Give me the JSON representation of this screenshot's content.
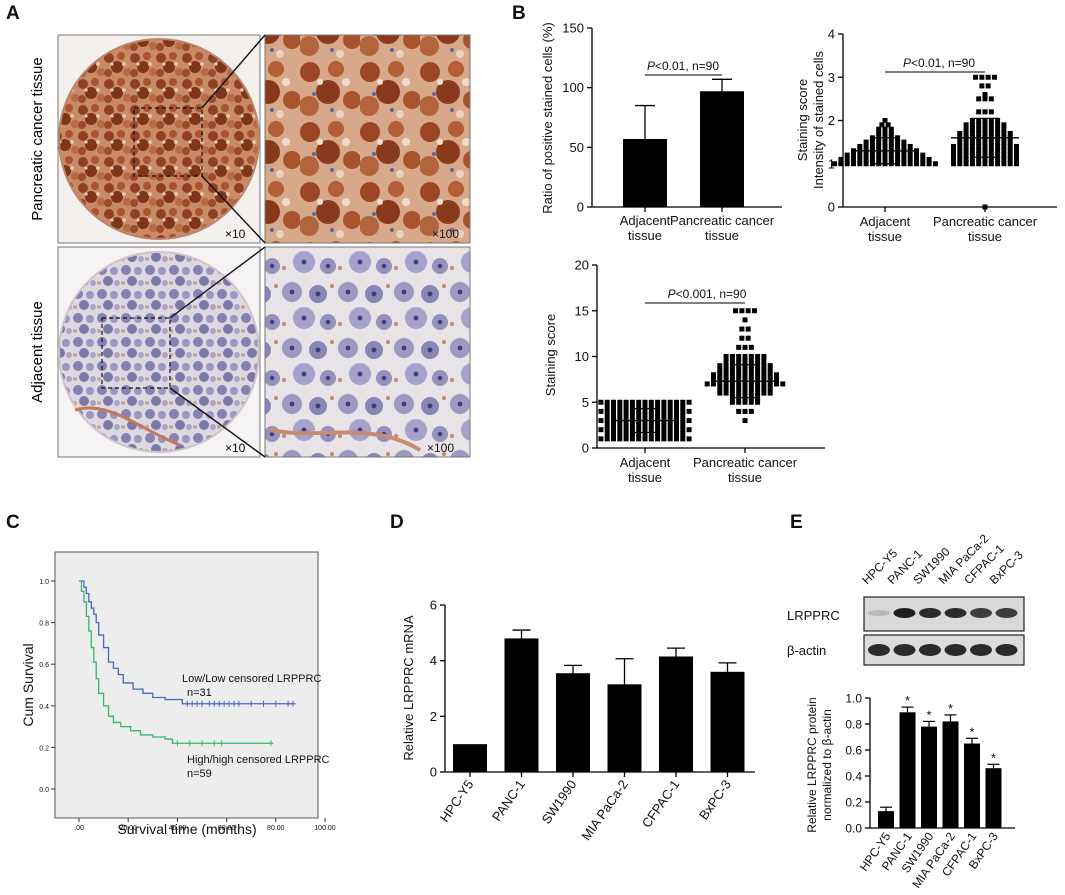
{
  "panels": {
    "a": {
      "letter": "A",
      "row_labels": [
        "Pancreatic cancer tissue",
        "Adjacent tissue"
      ],
      "mag_low": "×10",
      "mag_high": "×100"
    },
    "b": {
      "letter": "B"
    },
    "c": {
      "letter": "C"
    },
    "d": {
      "letter": "D"
    },
    "e": {
      "letter": "E"
    }
  },
  "colors": {
    "tumor_stain": "#9a4a2c",
    "normal_stain": "#7c7aa8",
    "km_low": "#4a66c0",
    "km_high": "#2fb86f",
    "km_bg": "#ededed",
    "bar": "#000000"
  },
  "chart_data": [
    {
      "id": "b1",
      "type": "bar",
      "categories": [
        [
          "Adjacent",
          "tissue"
        ],
        [
          "Pancreatic cancer",
          "tissue"
        ]
      ],
      "values": [
        57,
        97
      ],
      "errors": [
        28,
        10
      ],
      "ylabel": "Ratio of positive stained cells (%)",
      "ylim": [
        0,
        150
      ],
      "yticks": [
        0,
        50,
        100,
        150
      ],
      "annotation": {
        "p": "P",
        "text": "<0.01, n=90"
      }
    },
    {
      "id": "b2",
      "type": "scatter",
      "categories": [
        [
          "Adjacent",
          "tissue"
        ],
        [
          "Pancreatic cancer",
          "tissue"
        ]
      ],
      "ylabel": [
        "Staining score",
        "Intensity of stained cells"
      ],
      "ylim": [
        0,
        4
      ],
      "yticks": [
        0,
        1,
        2,
        3,
        4
      ],
      "means": [
        1.3,
        1.6
      ],
      "sd": [
        0.3,
        0.45
      ],
      "groups": [
        {
          "levels": [
            [
              1.0,
              17
            ],
            [
              1.1,
              15
            ],
            [
              1.2,
              13
            ],
            [
              1.3,
              11
            ],
            [
              1.4,
              9
            ],
            [
              1.5,
              7
            ],
            [
              1.6,
              5
            ],
            [
              1.7,
              3
            ],
            [
              1.8,
              3
            ],
            [
              1.9,
              2
            ],
            [
              2.0,
              1
            ]
          ]
        },
        {
          "levels": [
            [
              1.0,
              11
            ],
            [
              1.1,
              11
            ],
            [
              1.2,
              11
            ],
            [
              1.3,
              11
            ],
            [
              1.4,
              11
            ],
            [
              1.5,
              9
            ],
            [
              1.6,
              9
            ],
            [
              1.7,
              9
            ],
            [
              1.8,
              7
            ],
            [
              1.9,
              7
            ],
            [
              2.0,
              5
            ],
            [
              2.2,
              3
            ],
            [
              2.5,
              3
            ],
            [
              2.6,
              1
            ],
            [
              2.8,
              2
            ],
            [
              3.0,
              4
            ],
            [
              0.0,
              1
            ]
          ]
        }
      ],
      "annotation": {
        "p": "P",
        "text": "<0.01, n=90"
      }
    },
    {
      "id": "b3",
      "type": "scatter",
      "categories": [
        [
          "Adjacent",
          "tissue"
        ],
        [
          "Pancreatic cancer",
          "tissue"
        ]
      ],
      "ylabel": "Staining score",
      "ylim": [
        0,
        20
      ],
      "yticks": [
        0,
        5,
        10,
        15,
        20
      ],
      "means": [
        3.0,
        7.3
      ],
      "sd": [
        1.3,
        1.8
      ],
      "groups": [
        {
          "levels": [
            [
              1,
              15
            ],
            [
              1.5,
              13
            ],
            [
              2,
              15
            ],
            [
              2.5,
              13
            ],
            [
              3,
              15
            ],
            [
              3.5,
              13
            ],
            [
              4,
              15
            ],
            [
              4.5,
              13
            ],
            [
              5,
              15
            ]
          ]
        },
        {
          "levels": [
            [
              3,
              1
            ],
            [
              4,
              3
            ],
            [
              5,
              5
            ],
            [
              5.5,
              5
            ],
            [
              6,
              9
            ],
            [
              6.5,
              9
            ],
            [
              7,
              13
            ],
            [
              7.5,
              11
            ],
            [
              8,
              11
            ],
            [
              8.5,
              9
            ],
            [
              9,
              9
            ],
            [
              9.5,
              7
            ],
            [
              10,
              7
            ],
            [
              11,
              3
            ],
            [
              12,
              2
            ],
            [
              13,
              2
            ],
            [
              14,
              1
            ],
            [
              15,
              4
            ]
          ]
        }
      ],
      "annotation": {
        "p": "P",
        "text": "<0.001, n=90"
      }
    },
    {
      "id": "c",
      "type": "line",
      "xlabel": "Survival time (months)",
      "ylabel": "Cum Survival",
      "xlim": [
        0,
        100
      ],
      "ylim": [
        0,
        1
      ],
      "xticks": [
        ".00",
        "20.00",
        "40.00",
        "60.00",
        "80.00",
        "100.00"
      ],
      "yticks": [
        "0.0",
        "0.2",
        "0.4",
        "0.6",
        "0.8",
        "1.0"
      ],
      "series": [
        {
          "name": "Low/Low censored LRPPRC",
          "n_label": "n=31",
          "x": [
            0,
            2,
            3,
            4,
            5,
            6,
            7,
            8,
            10,
            12,
            14,
            16,
            18,
            22,
            26,
            30,
            35,
            42,
            88
          ],
          "y": [
            1.0,
            0.97,
            0.94,
            0.9,
            0.87,
            0.84,
            0.8,
            0.74,
            0.68,
            0.61,
            0.58,
            0.55,
            0.51,
            0.48,
            0.46,
            0.44,
            0.43,
            0.41,
            0.41
          ],
          "censored": [
            44,
            46,
            48,
            50,
            53,
            55,
            57,
            59,
            61,
            63,
            65,
            70,
            75,
            80,
            85,
            87
          ]
        },
        {
          "name": "High/high censored LRPPRC",
          "n_label": "n=59",
          "x": [
            0,
            1,
            2,
            3,
            4,
            5,
            6,
            7,
            8,
            10,
            12,
            14,
            17,
            21,
            25,
            30,
            35,
            38,
            79
          ],
          "y": [
            1.0,
            0.95,
            0.9,
            0.83,
            0.76,
            0.68,
            0.61,
            0.53,
            0.46,
            0.4,
            0.35,
            0.32,
            0.3,
            0.28,
            0.26,
            0.25,
            0.24,
            0.22,
            0.22
          ],
          "censored": [
            40,
            45,
            50,
            55,
            58,
            78
          ]
        }
      ]
    },
    {
      "id": "d",
      "type": "bar",
      "categories": [
        "HPC-Y5",
        "PANC-1",
        "SW1990",
        "MIA PaCa-2",
        "CFPAC-1",
        "BxPC-3"
      ],
      "values": [
        1.0,
        4.8,
        3.55,
        3.15,
        4.15,
        3.6
      ],
      "errors": [
        0,
        0.3,
        0.28,
        0.92,
        0.3,
        0.32
      ],
      "ylabel": "Relative LRPPRC mRNA",
      "ylim": [
        0,
        6
      ],
      "yticks": [
        0,
        2,
        4,
        6
      ]
    },
    {
      "id": "e",
      "type": "bar",
      "blot": {
        "lanes": [
          "HPC-Y5",
          "PANC-1",
          "SW1990",
          "MIA PaCa-2",
          "CFPAC-1",
          "BxPC-3"
        ],
        "rows": [
          "LRPPRC",
          "β-actin"
        ],
        "lrpprc_intensity": [
          0.15,
          0.9,
          0.85,
          0.85,
          0.75,
          0.75
        ],
        "actin_intensity": [
          0.85,
          0.85,
          0.85,
          0.85,
          0.85,
          0.85
        ]
      },
      "categories": [
        "HPC-Y5",
        "PANC-1",
        "SW1990",
        "MIA PaCa-2",
        "CFPAC-1",
        "BxPC-3"
      ],
      "values": [
        0.13,
        0.89,
        0.78,
        0.82,
        0.65,
        0.46
      ],
      "errors": [
        0.03,
        0.04,
        0.04,
        0.05,
        0.04,
        0.03
      ],
      "significance": [
        "",
        "*",
        "*",
        "*",
        "*",
        "*"
      ],
      "ylabel": [
        "Relative LRPPRC protein",
        "normalized to β-actin"
      ],
      "ylim": [
        0,
        1.0
      ],
      "yticks": [
        "0.0",
        "0.2",
        "0.4",
        "0.6",
        "0.8",
        "1.0"
      ]
    }
  ]
}
